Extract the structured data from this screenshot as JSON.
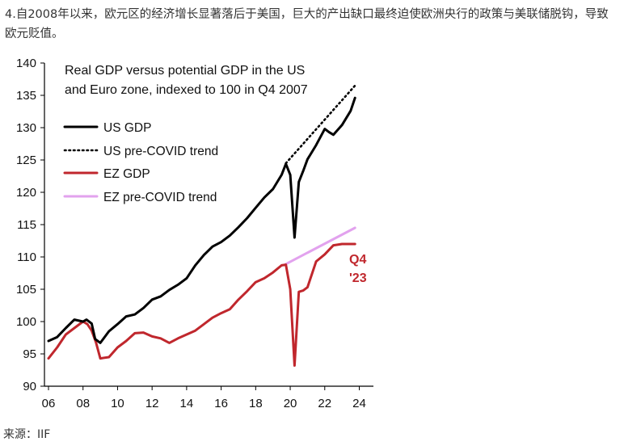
{
  "intro_text": "4.自2008年以来，欧元区的经济增长显著落后于美国，巨大的产出缺口最终迫使欧洲央行的政策与美联储脱钩，导致欧元贬值。",
  "source_text": "来源：IIF",
  "chart_data": {
    "type": "line",
    "title_lines": [
      "Real GDP versus potential GDP in the US",
      "and Euro zone, indexed to 100 in Q4 2007"
    ],
    "ylim": [
      90,
      140
    ],
    "yticks": [
      90,
      95,
      100,
      105,
      110,
      115,
      120,
      125,
      130,
      135,
      140
    ],
    "xlim": [
      2006,
      2024.5
    ],
    "xticks": [
      2006,
      2008,
      2010,
      2012,
      2014,
      2016,
      2018,
      2020,
      2022,
      2024
    ],
    "xtick_labels": [
      "06",
      "08",
      "10",
      "12",
      "14",
      "16",
      "18",
      "20",
      "22",
      "24"
    ],
    "grid": false,
    "legend_position": "top-left",
    "annotation": [
      "Q4",
      "'23"
    ],
    "colors": {
      "us": "#000000",
      "us_trend": "#000000",
      "ez": "#c0272d",
      "ez_trend": "#e2a2ee"
    },
    "series": [
      {
        "name": "US GDP",
        "key": "us",
        "style": "solid",
        "x": [
          2006.0,
          2006.5,
          2007.0,
          2007.5,
          2008.0,
          2008.2,
          2008.5,
          2008.7,
          2009.0,
          2009.5,
          2010.0,
          2010.5,
          2011.0,
          2011.5,
          2012.0,
          2012.5,
          2013.0,
          2013.5,
          2014.0,
          2014.5,
          2015.0,
          2015.5,
          2016.0,
          2016.5,
          2017.0,
          2017.5,
          2018.0,
          2018.5,
          2019.0,
          2019.5,
          2019.75,
          2020.0,
          2020.25,
          2020.5,
          2020.75,
          2021.0,
          2021.5,
          2022.0,
          2022.25,
          2022.5,
          2023.0,
          2023.5,
          2023.75
        ],
        "y": [
          97.0,
          97.6,
          99.0,
          100.3,
          100.0,
          100.3,
          99.7,
          97.3,
          96.7,
          98.5,
          99.6,
          100.8,
          101.1,
          102.1,
          103.4,
          103.9,
          104.9,
          105.7,
          106.7,
          108.7,
          110.3,
          111.6,
          112.3,
          113.3,
          114.6,
          116.0,
          117.6,
          119.2,
          120.5,
          122.7,
          124.4,
          122.7,
          113.0,
          121.6,
          123.3,
          125.1,
          127.3,
          129.8,
          129.3,
          128.9,
          130.4,
          132.6,
          134.6
        ]
      },
      {
        "name": "US pre-COVID trend",
        "key": "us_trend",
        "style": "dotted",
        "x": [
          2019.75,
          2023.75
        ],
        "y": [
          124.5,
          136.5
        ]
      },
      {
        "name": "EZ GDP",
        "key": "ez",
        "style": "solid",
        "x": [
          2006.0,
          2006.5,
          2007.0,
          2007.5,
          2008.0,
          2008.25,
          2008.5,
          2008.75,
          2009.0,
          2009.5,
          2010.0,
          2010.5,
          2011.0,
          2011.5,
          2012.0,
          2012.5,
          2013.0,
          2013.5,
          2014.0,
          2014.5,
          2015.0,
          2015.5,
          2016.0,
          2016.5,
          2017.0,
          2017.5,
          2018.0,
          2018.5,
          2019.0,
          2019.5,
          2019.75,
          2020.0,
          2020.25,
          2020.5,
          2020.75,
          2021.0,
          2021.5,
          2022.0,
          2022.25,
          2022.5,
          2023.0,
          2023.5,
          2023.75
        ],
        "y": [
          94.3,
          96.0,
          98.0,
          99.0,
          100.0,
          99.6,
          98.6,
          96.8,
          94.3,
          94.5,
          96.0,
          97.0,
          98.2,
          98.3,
          97.7,
          97.4,
          96.7,
          97.4,
          98.0,
          98.6,
          99.6,
          100.6,
          101.3,
          101.9,
          103.4,
          104.7,
          106.1,
          106.7,
          107.6,
          108.7,
          108.8,
          105.0,
          93.2,
          104.6,
          104.8,
          105.3,
          109.3,
          110.4,
          111.1,
          111.8,
          112.0,
          112.0,
          112.0
        ]
      },
      {
        "name": "EZ pre-COVID trend",
        "key": "ez_trend",
        "style": "solid",
        "x": [
          2019.75,
          2023.75
        ],
        "y": [
          108.9,
          114.5
        ]
      }
    ]
  }
}
